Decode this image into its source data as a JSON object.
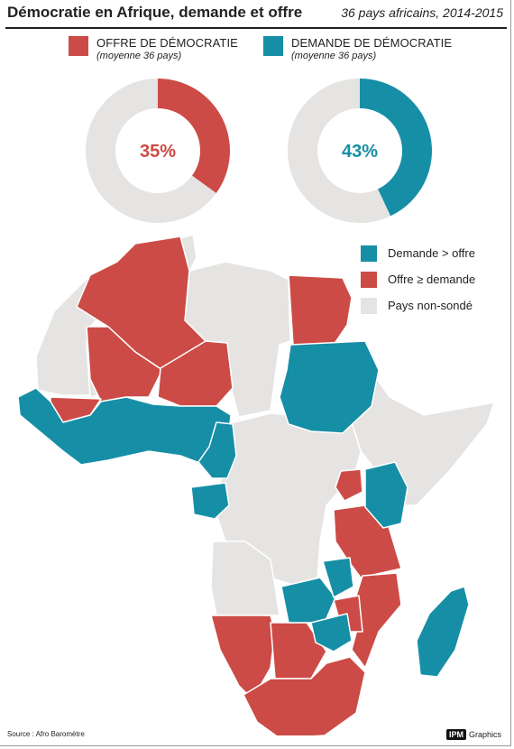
{
  "title": "Démocratie en Afrique, demande et offre",
  "subtitle": "36 pays africains, 2014-2015",
  "colors": {
    "offre": "#cc4b46",
    "demande": "#168fa6",
    "non_sonde": "#e5e4e2",
    "border": "#ffffff"
  },
  "chart_data": [
    {
      "type": "pie",
      "title": "OFFRE DE DÉMOCRATIE",
      "subtitle": "(moyenne 36 pays)",
      "label": "35%",
      "values": [
        35,
        65
      ],
      "colors": [
        "#cc4b46",
        "#e5e4e2"
      ]
    },
    {
      "type": "pie",
      "title": "DEMANDE DE DÉMOCRATIE",
      "subtitle": "(moyenne 36 pays)",
      "label": "43%",
      "values": [
        43,
        57
      ],
      "colors": [
        "#168fa6",
        "#e5e4e2"
      ]
    }
  ],
  "map_legend": [
    {
      "label": "Demande > offre",
      "color": "#168fa6"
    },
    {
      "label": "Offre ≥ demande",
      "color": "#cc4b46"
    },
    {
      "label": "Pays non-sondé",
      "color": "#e5e4e2"
    }
  ],
  "source": "Source : Afro Baromètre",
  "brand": {
    "logo": "IPM",
    "text": "Graphics"
  }
}
